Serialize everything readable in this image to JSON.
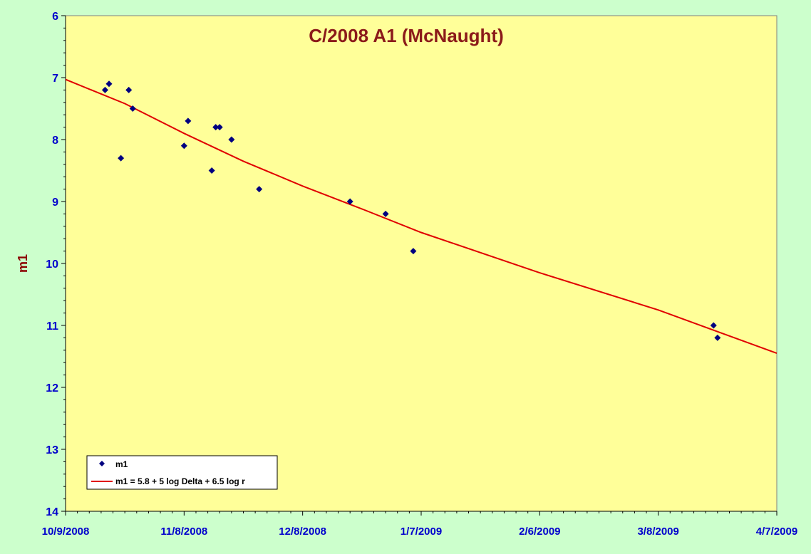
{
  "colors": {
    "page_background": "#ccffcc",
    "plot_background": "#ffff99",
    "marker": "#000080",
    "fit_line": "#e00000",
    "tick_labels": "#0000cc",
    "title": "#8b1a1a"
  },
  "chart_data": {
    "type": "scatter",
    "title": "C/2008 A1 (McNaught)",
    "xlabel": "",
    "ylabel": "m1",
    "x_axis": {
      "type": "date",
      "range": [
        "2008-10-09",
        "2009-04-07"
      ],
      "tick_labels": [
        "10/9/2008",
        "11/8/2008",
        "12/8/2008",
        "1/7/2009",
        "2/6/2009",
        "3/8/2009",
        "4/7/2009"
      ]
    },
    "y_axis": {
      "reversed": true,
      "range": [
        6,
        14
      ],
      "tick_labels": [
        "6",
        "7",
        "8",
        "9",
        "10",
        "11",
        "12",
        "13",
        "14"
      ]
    },
    "grid": false,
    "legend": {
      "placement": "bottom-left",
      "entries": [
        "m1",
        "m1 = 5.8 + 5 log Delta + 6.5 log r"
      ]
    },
    "series": [
      {
        "name": "m1",
        "kind": "scatter",
        "marker": "diamond",
        "points": [
          {
            "x": "2008-10-19",
            "y": 7.2
          },
          {
            "x": "2008-10-20",
            "y": 7.1
          },
          {
            "x": "2008-10-23",
            "y": 8.3
          },
          {
            "x": "2008-10-25",
            "y": 7.2
          },
          {
            "x": "2008-10-26",
            "y": 7.5
          },
          {
            "x": "2008-11-08",
            "y": 8.1
          },
          {
            "x": "2008-11-09",
            "y": 7.7
          },
          {
            "x": "2008-11-15",
            "y": 8.5
          },
          {
            "x": "2008-11-16",
            "y": 7.8
          },
          {
            "x": "2008-11-17",
            "y": 7.8
          },
          {
            "x": "2008-11-20",
            "y": 8.0
          },
          {
            "x": "2008-11-27",
            "y": 8.8
          },
          {
            "x": "2008-12-20",
            "y": 9.0
          },
          {
            "x": "2008-12-29",
            "y": 9.2
          },
          {
            "x": "2009-01-05",
            "y": 9.8
          },
          {
            "x": "2009-03-22",
            "y": 11.0
          },
          {
            "x": "2009-03-23",
            "y": 11.2
          }
        ]
      },
      {
        "name": "m1 = 5.8 + 5 log Delta + 6.5 log r",
        "kind": "line",
        "points": [
          {
            "x": "2008-10-09",
            "y": 7.03
          },
          {
            "x": "2008-10-24",
            "y": 7.42
          },
          {
            "x": "2008-11-08",
            "y": 7.9
          },
          {
            "x": "2008-11-23",
            "y": 8.35
          },
          {
            "x": "2008-12-08",
            "y": 8.75
          },
          {
            "x": "2008-12-23",
            "y": 9.12
          },
          {
            "x": "2009-01-07",
            "y": 9.5
          },
          {
            "x": "2009-02-06",
            "y": 10.15
          },
          {
            "x": "2009-03-08",
            "y": 10.75
          },
          {
            "x": "2009-04-07",
            "y": 11.45
          }
        ]
      }
    ]
  }
}
